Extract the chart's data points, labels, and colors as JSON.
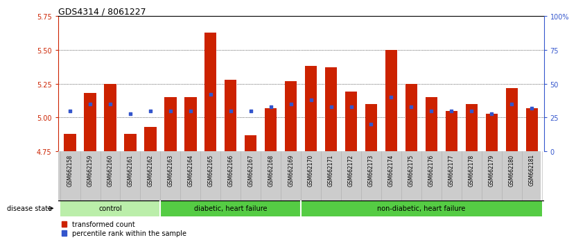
{
  "title": "GDS4314 / 8061227",
  "samples": [
    "GSM662158",
    "GSM662159",
    "GSM662160",
    "GSM662161",
    "GSM662162",
    "GSM662163",
    "GSM662164",
    "GSM662165",
    "GSM662166",
    "GSM662167",
    "GSM662168",
    "GSM662169",
    "GSM662170",
    "GSM662171",
    "GSM662172",
    "GSM662173",
    "GSM662174",
    "GSM662175",
    "GSM662176",
    "GSM662177",
    "GSM662178",
    "GSM662179",
    "GSM662180",
    "GSM662181"
  ],
  "bar_values": [
    4.88,
    5.18,
    5.25,
    4.88,
    4.93,
    5.15,
    5.15,
    5.63,
    5.28,
    4.87,
    5.07,
    5.27,
    5.38,
    5.37,
    5.19,
    5.1,
    5.5,
    5.25,
    5.15,
    5.05,
    5.1,
    5.03,
    5.22,
    5.07
  ],
  "blue_percentiles": [
    30,
    35,
    35,
    28,
    30,
    30,
    30,
    42,
    30,
    30,
    33,
    35,
    38,
    33,
    33,
    20,
    40,
    33,
    30,
    30,
    30,
    28,
    35,
    32
  ],
  "ymin": 4.75,
  "ymax": 5.75,
  "yticks": [
    4.75,
    5.0,
    5.25,
    5.5,
    5.75
  ],
  "y2ticks": [
    0,
    25,
    50,
    75,
    100
  ],
  "bar_color": "#cc2200",
  "blue_color": "#3355cc",
  "groups": [
    {
      "start": 0,
      "end": 5,
      "color": "#bbeeaa",
      "label": "control"
    },
    {
      "start": 5,
      "end": 12,
      "color": "#66cc44",
      "label": "diabetic, heart failure"
    },
    {
      "start": 12,
      "end": 24,
      "color": "#66cc44",
      "label": "non-diabetic, heart failure"
    }
  ],
  "disease_label": "disease state",
  "legend_items": [
    "transformed count",
    "percentile rank within the sample"
  ],
  "title_fontsize": 9,
  "bar_width": 0.6,
  "tick_gray": "#cccccc"
}
